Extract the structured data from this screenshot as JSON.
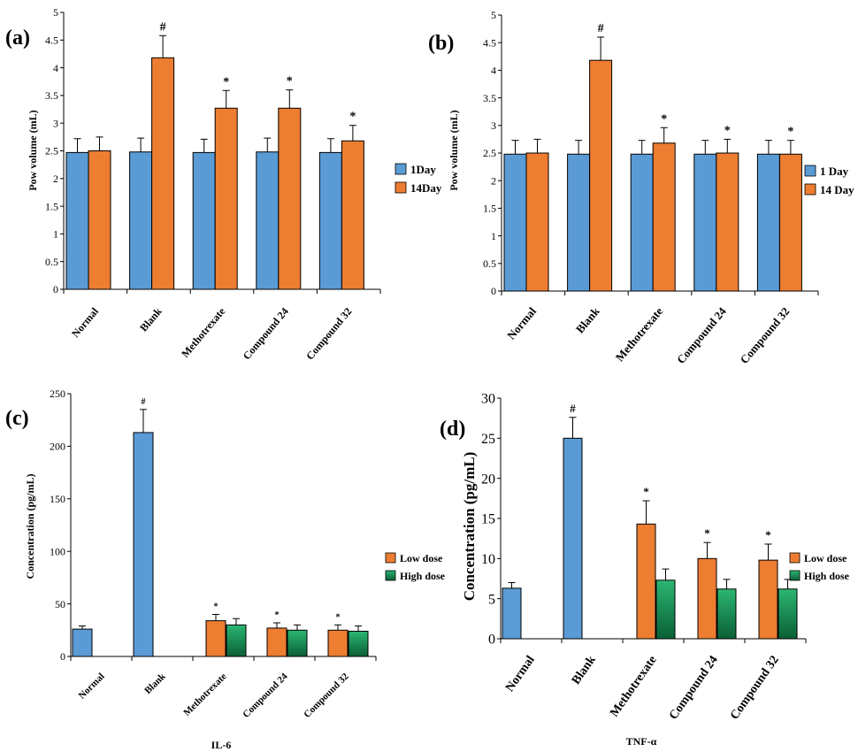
{
  "colors": {
    "blue": "#5b9bd5",
    "orange": "#ed7d31",
    "green": "#2bb673",
    "green_dark": "#0a5f35",
    "axis": "#000000"
  },
  "chart_data": [
    {
      "panel": "(a)",
      "type": "bar",
      "xlabel": "",
      "ylabel": "Pow volume  (mL)",
      "ylim": [
        0,
        5
      ],
      "yticks": [
        "0",
        "0.5",
        "1",
        "1.5",
        "2",
        "2.5",
        "3",
        "3.5",
        "4",
        "4.5",
        "5"
      ],
      "categories": [
        "Normal",
        "Blank",
        "Methotrexate",
        "Compound 24",
        "Compound 32"
      ],
      "legend_position": "right",
      "series": [
        {
          "name": "1Day",
          "color": "blue",
          "values": [
            2.47,
            2.48,
            2.47,
            2.48,
            2.47
          ],
          "errors": [
            0.25,
            0.25,
            0.24,
            0.25,
            0.25
          ],
          "marks": [
            "",
            "",
            "",
            "",
            ""
          ]
        },
        {
          "name": "14Day",
          "color": "orange",
          "values": [
            2.5,
            4.18,
            3.27,
            3.27,
            2.68
          ],
          "errors": [
            0.25,
            0.4,
            0.32,
            0.33,
            0.28
          ],
          "marks": [
            "",
            "#",
            "*",
            "*",
            "*"
          ]
        }
      ]
    },
    {
      "panel": "(b)",
      "type": "bar",
      "xlabel": "",
      "ylabel": "Pow volume  (mL)",
      "ylim": [
        0,
        5
      ],
      "yticks": [
        "0",
        "0.5",
        "1",
        "1.5",
        "2",
        "2.5",
        "3",
        "3.5",
        "4",
        "4.5",
        "5"
      ],
      "categories": [
        "Normal",
        "Blank",
        "Methotrexate",
        "Compound 24",
        "Compound 32"
      ],
      "legend_position": "right",
      "series": [
        {
          "name": "1 Day",
          "color": "blue",
          "values": [
            2.48,
            2.48,
            2.48,
            2.48,
            2.48
          ],
          "errors": [
            0.25,
            0.25,
            0.25,
            0.25,
            0.25
          ],
          "marks": [
            "",
            "",
            "",
            "",
            ""
          ]
        },
        {
          "name": "14 Day",
          "color": "orange",
          "values": [
            2.5,
            4.18,
            2.68,
            2.5,
            2.48
          ],
          "errors": [
            0.25,
            0.42,
            0.28,
            0.25,
            0.25
          ],
          "marks": [
            "",
            "#",
            "*",
            "*",
            "*"
          ]
        }
      ]
    },
    {
      "panel": "(c)",
      "type": "bar",
      "xlabel": "IL-6",
      "ylabel": "Concentration (pg/mL)",
      "ylim": [
        0,
        250
      ],
      "yticks": [
        "0",
        "50",
        "100",
        "150",
        "200",
        "250"
      ],
      "categories": [
        "Normal",
        "Blank",
        "Methotrexate",
        "Compound 24",
        "Compound 32"
      ],
      "legend_position": "right",
      "series": [
        {
          "name": "",
          "color": "blue",
          "values": [
            26,
            213,
            null,
            null,
            null
          ],
          "errors": [
            3,
            22,
            null,
            null,
            null
          ],
          "marks": [
            "",
            "#",
            "",
            "",
            ""
          ]
        },
        {
          "name": "Low dose",
          "color": "orange",
          "values": [
            null,
            null,
            34,
            27,
            25
          ],
          "errors": [
            null,
            null,
            6,
            5,
            5
          ],
          "marks": [
            "",
            "",
            "*",
            "*",
            "*"
          ]
        },
        {
          "name": "High dose",
          "color": "green",
          "values": [
            null,
            null,
            30,
            25,
            24
          ],
          "errors": [
            null,
            null,
            6,
            5,
            5
          ],
          "marks": [
            "",
            "",
            "",
            "",
            ""
          ]
        }
      ]
    },
    {
      "panel": "(d)",
      "type": "bar",
      "xlabel": "TNF-α",
      "ylabel": "Concentration (pg/mL)",
      "ylim": [
        0,
        30
      ],
      "yticks": [
        "0",
        "5",
        "10",
        "15",
        "20",
        "25",
        "30"
      ],
      "categories": [
        "Normal",
        "Blank",
        "Methotrexate",
        "Compound 24",
        "Compound 32"
      ],
      "legend_position": "right",
      "series": [
        {
          "name": "",
          "color": "blue",
          "values": [
            6.3,
            25,
            null,
            null,
            null
          ],
          "errors": [
            0.7,
            2.6,
            null,
            null,
            null
          ],
          "marks": [
            "",
            "#",
            "",
            "",
            ""
          ]
        },
        {
          "name": "Low dose",
          "color": "orange",
          "values": [
            null,
            null,
            14.3,
            10,
            9.8
          ],
          "errors": [
            null,
            null,
            2.9,
            2.0,
            2.0
          ],
          "marks": [
            "",
            "",
            "*",
            "*",
            "*"
          ]
        },
        {
          "name": "High dose",
          "color": "green",
          "values": [
            null,
            null,
            7.3,
            6.2,
            6.2
          ],
          "errors": [
            null,
            null,
            1.4,
            1.2,
            1.2
          ],
          "marks": [
            "",
            "",
            "",
            "",
            ""
          ]
        }
      ]
    }
  ]
}
